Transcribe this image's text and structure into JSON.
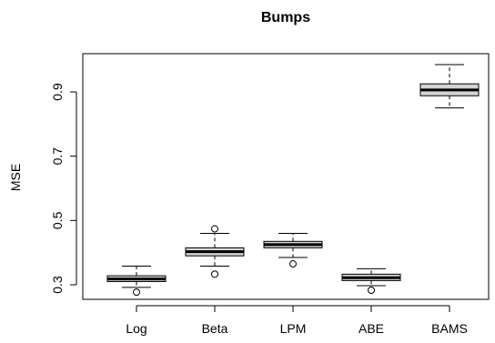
{
  "chart_data": {
    "type": "box",
    "title": "Bumps",
    "xlabel": "",
    "ylabel": "MSE",
    "ylim": [
      0.25,
      1.0
    ],
    "yticks": [
      0.3,
      0.5,
      0.7,
      0.9
    ],
    "ytick_labels": [
      "0.3",
      "0.5",
      "0.7",
      "0.9"
    ],
    "categories": [
      "Log",
      "Beta",
      "LPM",
      "ABE",
      "BAMS"
    ],
    "boxes": [
      {
        "name": "Log",
        "low": 0.292,
        "q1": 0.31,
        "median": 0.318,
        "q3": 0.328,
        "high": 0.358,
        "outliers": [
          0.277
        ]
      },
      {
        "name": "Beta",
        "low": 0.358,
        "q1": 0.39,
        "median": 0.403,
        "q3": 0.415,
        "high": 0.46,
        "outliers": [
          0.333,
          0.474
        ]
      },
      {
        "name": "LPM",
        "low": 0.385,
        "q1": 0.415,
        "median": 0.425,
        "q3": 0.435,
        "high": 0.46,
        "outliers": [
          0.365
        ]
      },
      {
        "name": "ABE",
        "low": 0.297,
        "q1": 0.313,
        "median": 0.322,
        "q3": 0.333,
        "high": 0.35,
        "outliers": [
          0.283
        ]
      },
      {
        "name": "BAMS",
        "low": 0.85,
        "q1": 0.888,
        "median": 0.906,
        "q3": 0.925,
        "high": 0.985,
        "outliers": []
      }
    ]
  }
}
